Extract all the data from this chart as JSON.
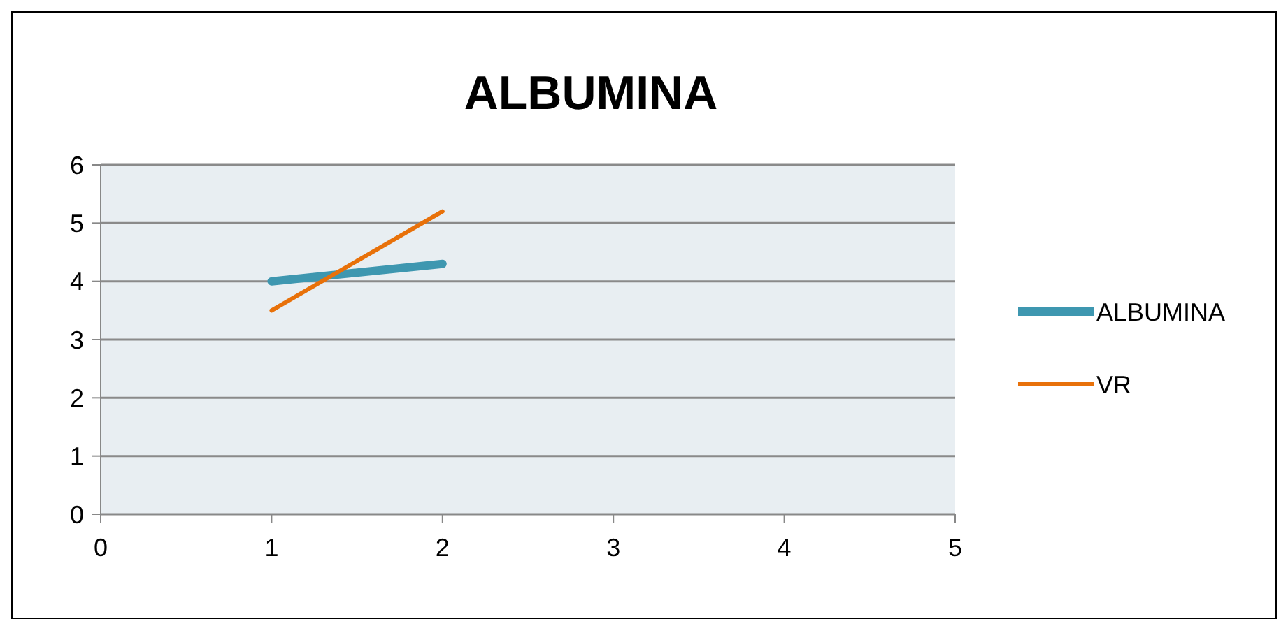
{
  "chart_data": {
    "type": "line",
    "title": "ALBUMINA",
    "x": [
      1,
      2
    ],
    "series": [
      {
        "name": "ALBUMINA",
        "color": "#3e97b0",
        "values": [
          4,
          4.3
        ]
      },
      {
        "name": "VR",
        "color": "#e8710a",
        "values": [
          3.5,
          5.2
        ]
      }
    ],
    "xlim": [
      0,
      5
    ],
    "xticks": [
      0,
      1,
      2,
      3,
      4,
      5
    ],
    "ylim": [
      0,
      6
    ],
    "yticks": [
      0,
      1,
      2,
      3,
      4,
      5,
      6
    ],
    "grid": "y",
    "legend": "right",
    "marker": "none",
    "line_style": "solid"
  }
}
